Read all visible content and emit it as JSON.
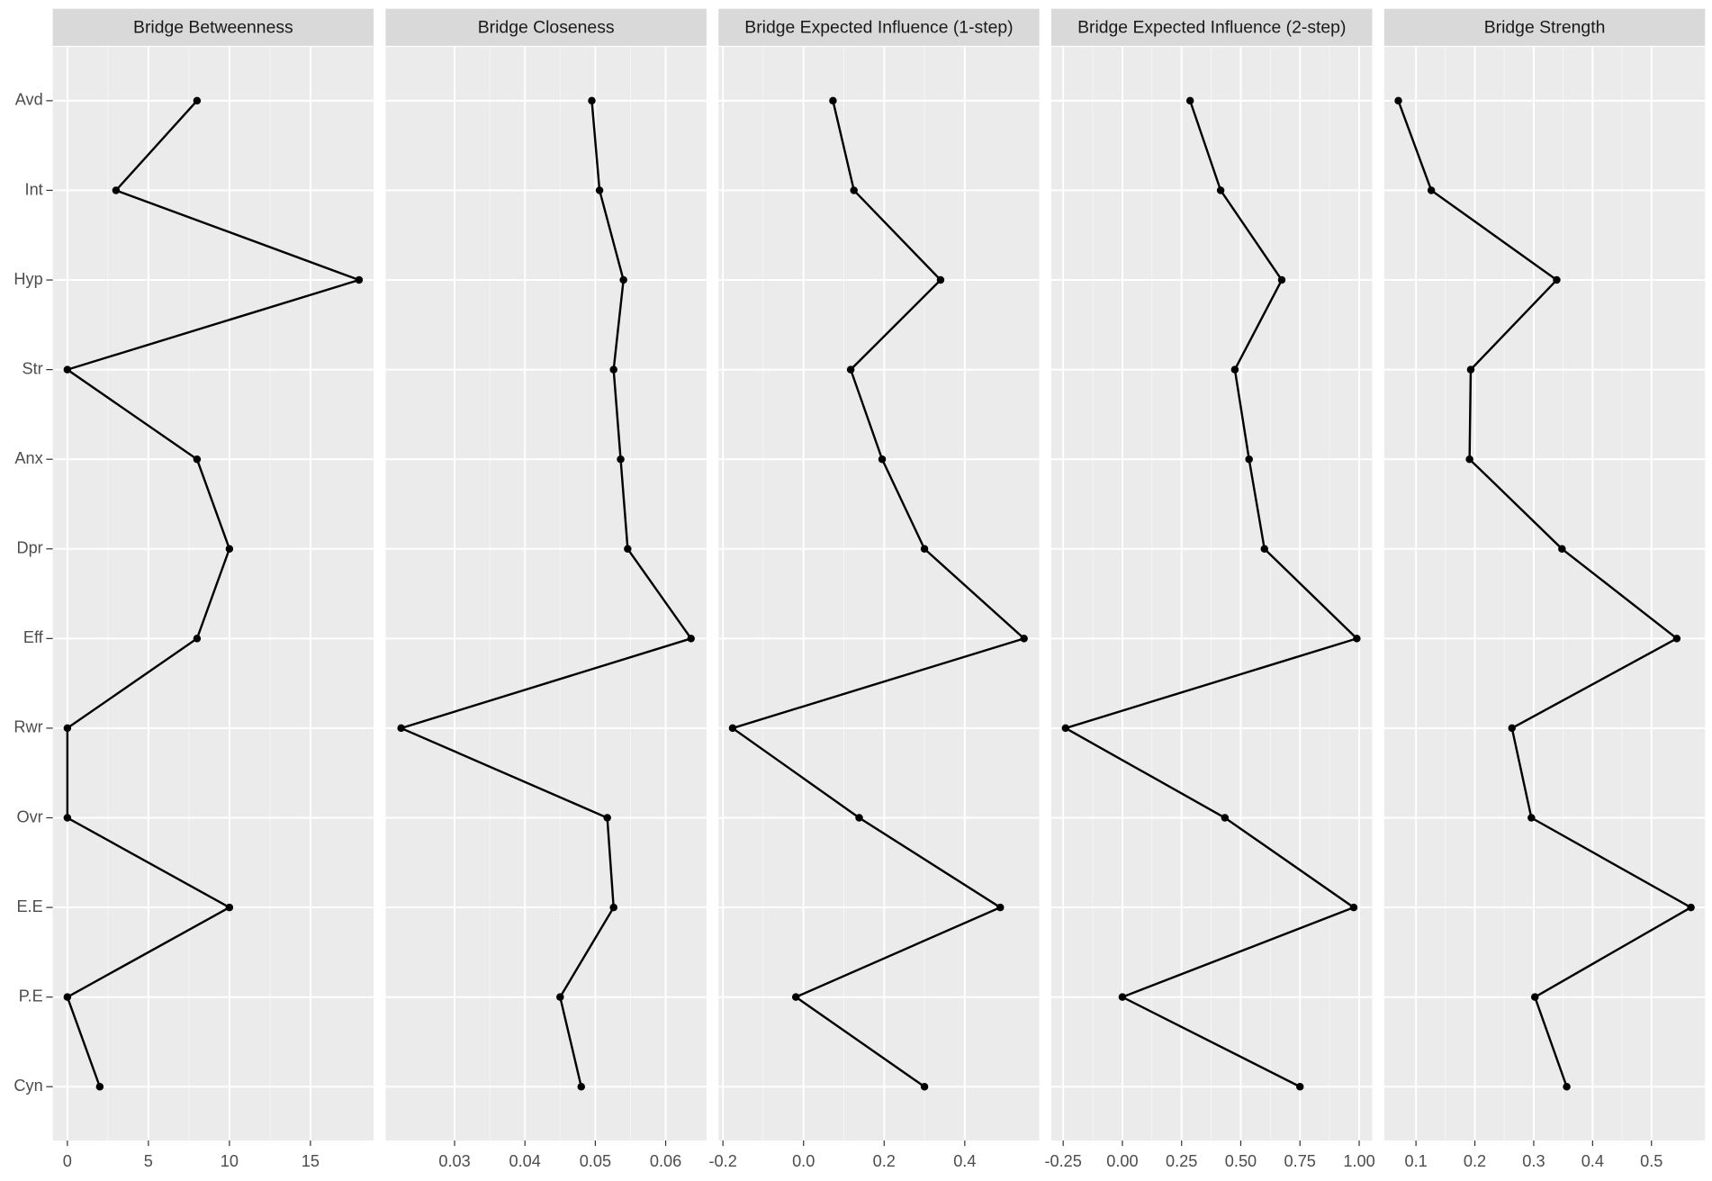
{
  "chart_data": [
    {
      "type": "line",
      "title": "Bridge Betweenness",
      "categories": [
        "Avd",
        "Int",
        "Hyp",
        "Str",
        "Anx",
        "Dpr",
        "Eff",
        "Rwr",
        "Ovr",
        "E.E",
        "P.E",
        "Cyn"
      ],
      "values": [
        8,
        3,
        18,
        0,
        8,
        10,
        8,
        0,
        0,
        10,
        0,
        2
      ],
      "color": "#000000",
      "xlim": [
        -0.9,
        18.9
      ],
      "xticks": [
        0,
        5,
        10,
        15
      ],
      "grid": true
    },
    {
      "type": "line",
      "title": "Bridge Closeness",
      "categories": [
        "Avd",
        "Int",
        "Hyp",
        "Str",
        "Anx",
        "Dpr",
        "Eff",
        "Rwr",
        "Ovr",
        "E.E",
        "P.E",
        "Cyn"
      ],
      "values": [
        0.0495,
        0.0506,
        0.054,
        0.0526,
        0.0536,
        0.0546,
        0.0636,
        0.0224,
        0.0517,
        0.0526,
        0.045,
        0.048
      ],
      "color": "#000000",
      "xlim": [
        0.0202,
        0.0658
      ],
      "xticks": [
        0.03,
        0.04,
        0.05,
        0.06
      ],
      "grid": true
    },
    {
      "type": "line",
      "title": "Bridge Expected Influence (1-step)",
      "categories": [
        "Avd",
        "Int",
        "Hyp",
        "Str",
        "Anx",
        "Dpr",
        "Eff",
        "Rwr",
        "Ovr",
        "E.E",
        "P.E",
        "Cyn"
      ],
      "values": [
        0.073,
        0.125,
        0.34,
        0.117,
        0.195,
        0.3,
        0.547,
        -0.176,
        0.138,
        0.488,
        -0.019,
        0.3
      ],
      "color": "#000000",
      "xlim": [
        -0.211,
        0.585
      ],
      "xticks": [
        -0.2,
        {
          "value": 0,
          "label": "0.0"
        },
        0.2,
        0.4
      ],
      "grid": true
    },
    {
      "type": "line",
      "title": "Bridge Expected Influence (2-step)",
      "categories": [
        "Avd",
        "Int",
        "Hyp",
        "Str",
        "Anx",
        "Dpr",
        "Eff",
        "Rwr",
        "Ovr",
        "E.E",
        "P.E",
        "Cyn"
      ],
      "values": [
        0.286,
        0.415,
        0.673,
        0.475,
        0.535,
        0.6,
        0.99,
        -0.24,
        0.433,
        0.977,
        0,
        0.75
      ],
      "color": "#000000",
      "xlim": [
        -0.3,
        1.055
      ],
      "xticks": [
        -0.25,
        {
          "value": 0,
          "label": "0.00"
        },
        0.25,
        {
          "value": 0.5,
          "label": "0.50"
        },
        0.75,
        {
          "value": 1,
          "label": "1.00"
        }
      ],
      "grid": true
    },
    {
      "type": "line",
      "title": "Bridge Strength",
      "categories": [
        "Avd",
        "Int",
        "Hyp",
        "Str",
        "Anx",
        "Dpr",
        "Eff",
        "Rwr",
        "Ovr",
        "E.E",
        "P.E",
        "Cyn"
      ],
      "values": [
        0.07,
        0.126,
        0.339,
        0.193,
        0.191,
        0.348,
        0.543,
        0.263,
        0.296,
        0.567,
        0.302,
        0.356
      ],
      "color": "#000000",
      "xlim": [
        0.046,
        0.591
      ],
      "xticks": [
        0.1,
        0.2,
        0.3,
        0.4,
        0.5
      ],
      "grid": true
    }
  ]
}
